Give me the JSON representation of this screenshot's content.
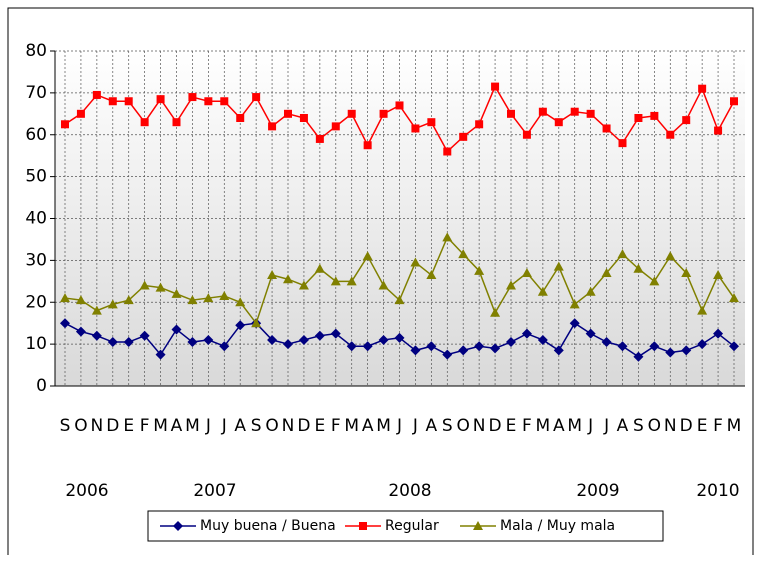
{
  "chart_data": {
    "type": "line",
    "categories": [
      "S",
      "O",
      "N",
      "D",
      "E",
      "F",
      "M",
      "A",
      "M",
      "J",
      "J",
      "A",
      "S",
      "O",
      "N",
      "D",
      "E",
      "F",
      "M",
      "A",
      "M",
      "J",
      "J",
      "A",
      "S",
      "O",
      "N",
      "D",
      "E",
      "F",
      "M",
      "A",
      "M",
      "J",
      "J",
      "A",
      "S",
      "O",
      "N",
      "D",
      "E",
      "F",
      "M"
    ],
    "years": [
      "2006",
      "2007",
      "2008",
      "2009",
      "2010"
    ],
    "series": [
      {
        "name": "Muy buena / Buena",
        "color": "#000080",
        "marker": "diamond",
        "values": [
          15,
          13,
          12,
          10.5,
          10.5,
          12,
          7.5,
          13.5,
          10.5,
          11,
          9.5,
          14.5,
          15,
          11,
          10,
          11,
          12,
          12.5,
          9.5,
          9.5,
          11,
          11.5,
          8.5,
          9.5,
          7.5,
          8.5,
          9.5,
          9,
          10.5,
          12.5,
          11,
          8.5,
          15,
          12.5,
          10.5,
          9.5,
          7,
          9.5,
          8,
          8.5,
          10,
          12.5,
          9.5
        ]
      },
      {
        "name": "Regular",
        "color": "#ff0000",
        "marker": "square",
        "values": [
          62.5,
          65,
          69.5,
          68,
          68,
          63,
          68.5,
          63,
          69,
          68,
          68,
          64,
          69,
          62,
          65,
          64,
          59,
          62,
          65,
          57.5,
          65,
          67,
          61.5,
          63,
          56,
          59.5,
          62.5,
          71.5,
          65,
          60,
          65.5,
          63,
          65.5,
          65,
          61.5,
          58,
          64,
          64.5,
          60,
          63.5,
          71,
          61,
          68
        ]
      },
      {
        "name": "Mala / Muy mala",
        "color": "#808000",
        "marker": "triangle",
        "values": [
          21,
          20.5,
          18,
          19.5,
          20.5,
          24,
          23.5,
          22,
          20.5,
          21,
          21.5,
          20,
          15,
          26.5,
          25.5,
          24,
          28,
          25,
          25,
          31,
          24,
          20.5,
          29.5,
          26.5,
          35.5,
          31.5,
          27.5,
          17.5,
          24,
          27,
          22.5,
          28.5,
          19.5,
          22.5,
          27,
          31.5,
          28,
          25,
          31,
          27,
          18,
          26.5,
          21
        ]
      }
    ],
    "ylim": [
      0,
      80
    ],
    "yticks": [
      0,
      10,
      20,
      30,
      40,
      50,
      60,
      70,
      80
    ],
    "grid": true
  }
}
